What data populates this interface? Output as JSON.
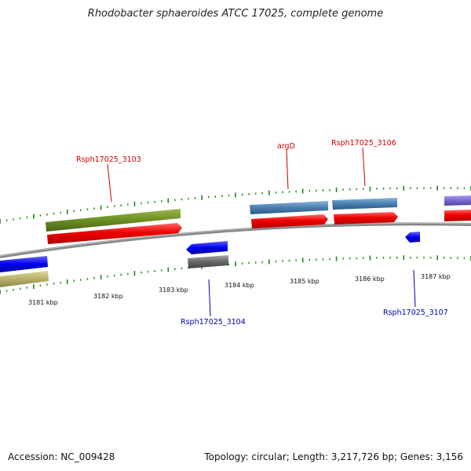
{
  "title": "Rhodobacter sphaeroides ATCC 17025, complete genome",
  "footer": {
    "accession": "Accession: NC_009428",
    "summary": "Topology: circular; Length: 3,217,726 bp; Genes: 3,156"
  },
  "kbp_labels": [
    "3181 kbp",
    "3182 kbp",
    "3183 kbp",
    "3184 kbp",
    "3185 kbp",
    "3186 kbp",
    "3187 kbp"
  ],
  "gene_labels": {
    "rsph_3103": "Rsph17025_3103",
    "argD": "argD",
    "rsph_3106": "Rsph17025_3106",
    "rsph_3104": "Rsph17025_3104",
    "rsph_3107": "Rsph17025_3107"
  },
  "colors": {
    "forward_label": "#cc0000",
    "reverse_label": "#0000aa",
    "cds_red": "#ee0000",
    "olive": "#6b8e23",
    "steelblue": "#4a7fb0",
    "blue": "#0000ee",
    "gray": "#666666",
    "khaki": "#b8b06a",
    "slateblue": "#7b68cc",
    "tick": "#1a8a1a"
  }
}
